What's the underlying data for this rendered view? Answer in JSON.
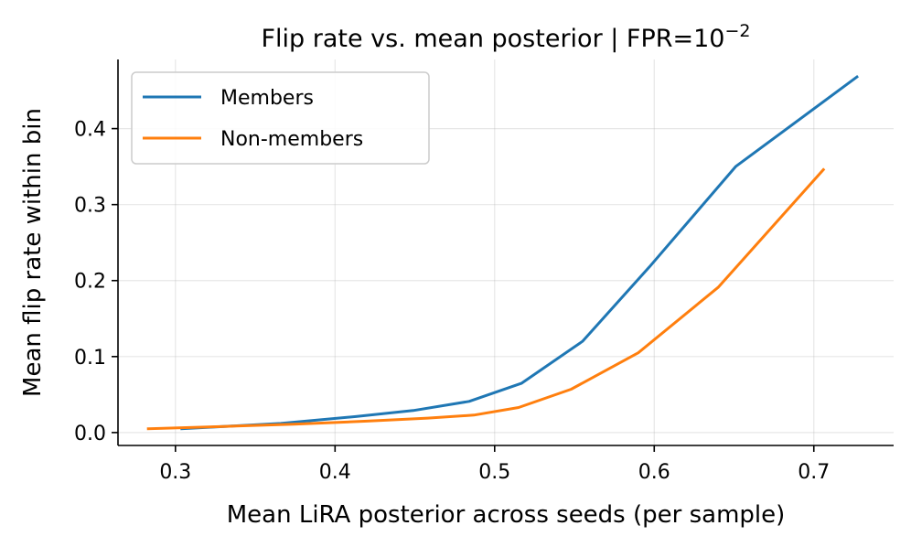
{
  "chart_data": {
    "type": "line",
    "title": "Flip rate vs. mean posterior  |  FPR=10",
    "title_superscript": "−2",
    "xlabel": "Mean LiRA posterior across seeds (per sample)",
    "ylabel": "Mean flip rate within bin",
    "xlim": [
      0.264,
      0.75
    ],
    "ylim": [
      -0.017,
      0.491
    ],
    "xticks": [
      0.3,
      0.4,
      0.5,
      0.6,
      0.7
    ],
    "xtick_labels": [
      "0.3",
      "0.4",
      "0.5",
      "0.6",
      "0.7"
    ],
    "yticks": [
      0.0,
      0.1,
      0.2,
      0.3,
      0.4
    ],
    "ytick_labels": [
      "0.0",
      "0.1",
      "0.2",
      "0.3",
      "0.4"
    ],
    "grid": true,
    "legend_position": "upper-left",
    "series": [
      {
        "name": "Members",
        "color": "#1f77b4",
        "x": [
          0.304,
          0.366,
          0.413,
          0.449,
          0.484,
          0.517,
          0.555,
          0.597,
          0.651,
          0.727
        ],
        "y": [
          0.005,
          0.012,
          0.021,
          0.029,
          0.041,
          0.065,
          0.12,
          0.218,
          0.35,
          0.468
        ]
      },
      {
        "name": "Non-members",
        "color": "#ff7f0e",
        "x": [
          0.283,
          0.33,
          0.374,
          0.42,
          0.458,
          0.487,
          0.515,
          0.548,
          0.59,
          0.64,
          0.706
        ],
        "y": [
          0.005,
          0.008,
          0.011,
          0.015,
          0.019,
          0.023,
          0.033,
          0.057,
          0.105,
          0.191,
          0.346
        ]
      }
    ]
  }
}
